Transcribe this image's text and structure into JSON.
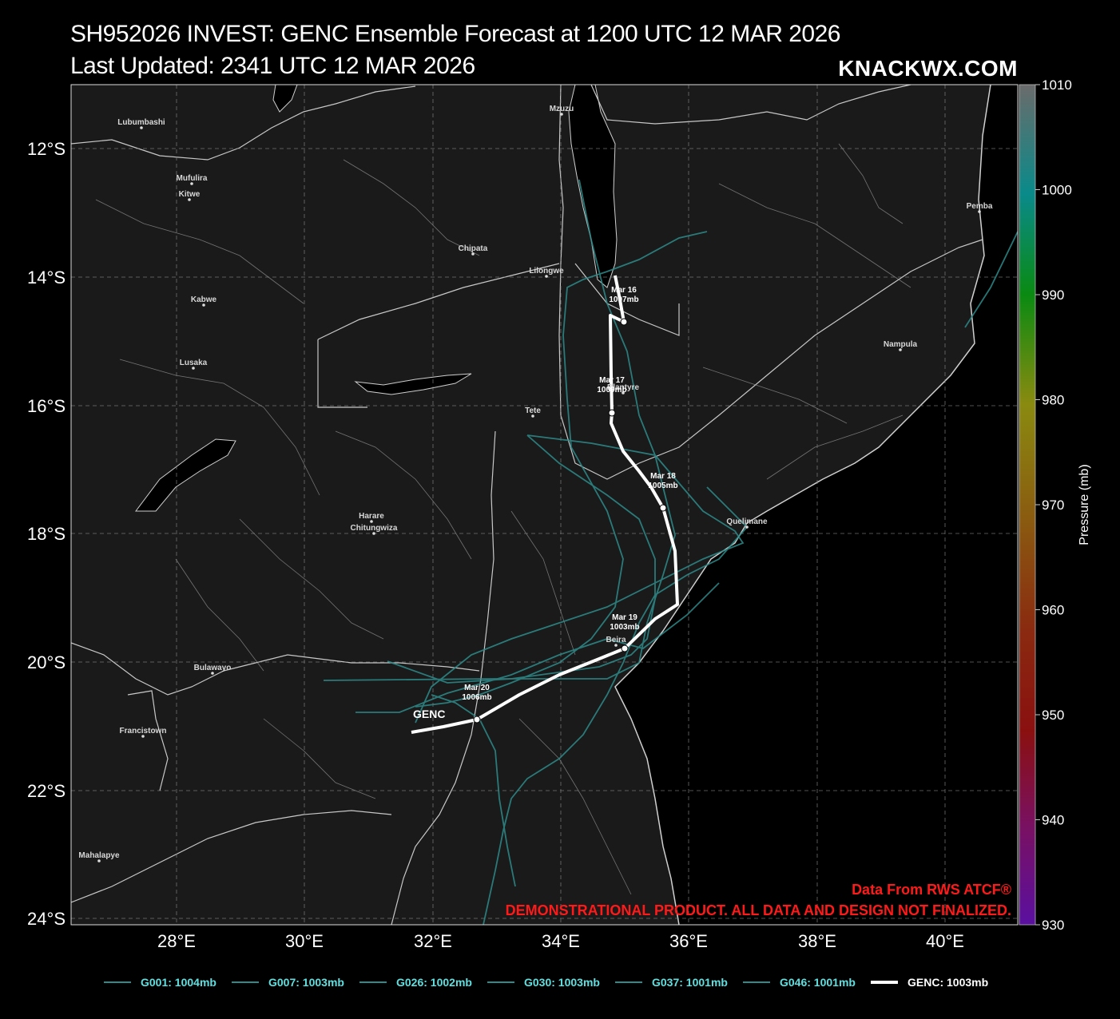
{
  "header": {
    "title": "SH952026 INVEST: GENC Ensemble Forecast at 1200 UTC 12 MAR 2026",
    "subtitle": "Last Updated: 2341 UTC 12 MAR 2026",
    "brand": "KNACKWX.COM"
  },
  "map": {
    "lon_labels": [
      "28°E",
      "30°E",
      "32°E",
      "34°E",
      "36°E",
      "38°E",
      "40°E"
    ],
    "lat_labels": [
      "12°S",
      "14°S",
      "16°S",
      "18°S",
      "20°S",
      "22°S",
      "24°S"
    ],
    "cities": [
      {
        "name": "Lubumbashi"
      },
      {
        "name": "Mufulira"
      },
      {
        "name": "Kitwe"
      },
      {
        "name": "Kabwe"
      },
      {
        "name": "Lusaka"
      },
      {
        "name": "Mzuzu"
      },
      {
        "name": "Chipata"
      },
      {
        "name": "Lilongwe"
      },
      {
        "name": "Blantyre"
      },
      {
        "name": "Tete"
      },
      {
        "name": "Harare"
      },
      {
        "name": "Chitungwiza"
      },
      {
        "name": "Bulawayo"
      },
      {
        "name": "Francistown"
      },
      {
        "name": "Mahalapye"
      },
      {
        "name": "Beira"
      },
      {
        "name": "Quelimane"
      },
      {
        "name": "Nampula"
      },
      {
        "name": "Pemba"
      }
    ],
    "colors": {
      "land": "#1a1a1a",
      "ocean": "#000000",
      "lakes": "#000000",
      "ensemble": "#2e8b8b",
      "genc": "#ffffff",
      "notice": "#ff1a1a"
    },
    "track_label": "GENC",
    "track_points": [
      {
        "label": "Mar 16",
        "pressure": "1007mb"
      },
      {
        "label": "Mar 17",
        "pressure": "1009mb"
      },
      {
        "label": "Mar 18",
        "pressure": "1005mb"
      },
      {
        "label": "Mar 19",
        "pressure": "1003mb"
      },
      {
        "label": "Mar 20",
        "pressure": "1006mb"
      }
    ],
    "notice_line1": "Data From RWS ATCF®",
    "notice_line2": "DEMONSTRATIONAL PRODUCT. ALL DATA AND DESIGN NOT FINALIZED."
  },
  "colorbar": {
    "label": "Pressure (mb)",
    "ticks": [
      "1010",
      "1000",
      "990",
      "980",
      "970",
      "960",
      "950",
      "940",
      "930"
    ]
  },
  "legend": {
    "items": [
      {
        "label": "G001: 1004mb",
        "color": "#2e8b8b"
      },
      {
        "label": "G007: 1003mb",
        "color": "#2e8b8b"
      },
      {
        "label": "G026: 1002mb",
        "color": "#2e8b8b"
      },
      {
        "label": "G030: 1003mb",
        "color": "#2e8b8b"
      },
      {
        "label": "G037: 1001mb",
        "color": "#2e8b8b"
      },
      {
        "label": "G046: 1001mb",
        "color": "#2e8b8b"
      },
      {
        "label": "GENC: 1003mb",
        "color": "#ffffff"
      }
    ]
  }
}
